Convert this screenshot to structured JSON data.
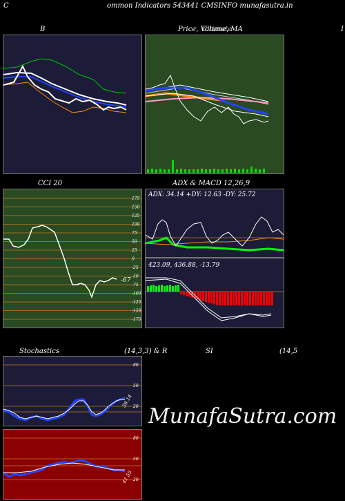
{
  "header": {
    "title": "ommon  Indicators 543441 CMSINFO munafasutra.in",
    "left_letter": "C"
  },
  "bollinger": {
    "title": "B"
  },
  "price": {
    "title": "Price,  Volume,  MA",
    "overlay_title": "Ultimate",
    "right_cut": "I"
  },
  "cci": {
    "title": "CCI 20",
    "value_label": "-67",
    "ticks": [
      "175",
      "150",
      "125",
      "100",
      "75",
      "50",
      "25",
      "0",
      "-25",
      "-50",
      "-75",
      "-100",
      "-125",
      "-150",
      "-175"
    ]
  },
  "adx": {
    "title": "ADX  & MACD 12,26,9",
    "readout": "ADX: 34.14  +DY: 12.63 -DY: 25.72"
  },
  "macd": {
    "readout": "423.09,  436.88,  -13.79"
  },
  "stoch": {
    "title_left": "Stochastics",
    "title_mid": "(14,3,3) & R",
    "ticks": [
      "80",
      "50",
      "20"
    ],
    "value_label": "36.14"
  },
  "rsi": {
    "title_left": "SI",
    "title_right": "(14,5",
    "ticks": [
      "80",
      "50",
      "20"
    ],
    "value_label": "41.55"
  },
  "watermark": "MunafaSutra.com",
  "colors": {
    "panel_navy": "#1c1c38",
    "panel_green": "#2a4a22",
    "panel_red": "#8b0000",
    "grid_orange": "#c87a1e"
  }
}
